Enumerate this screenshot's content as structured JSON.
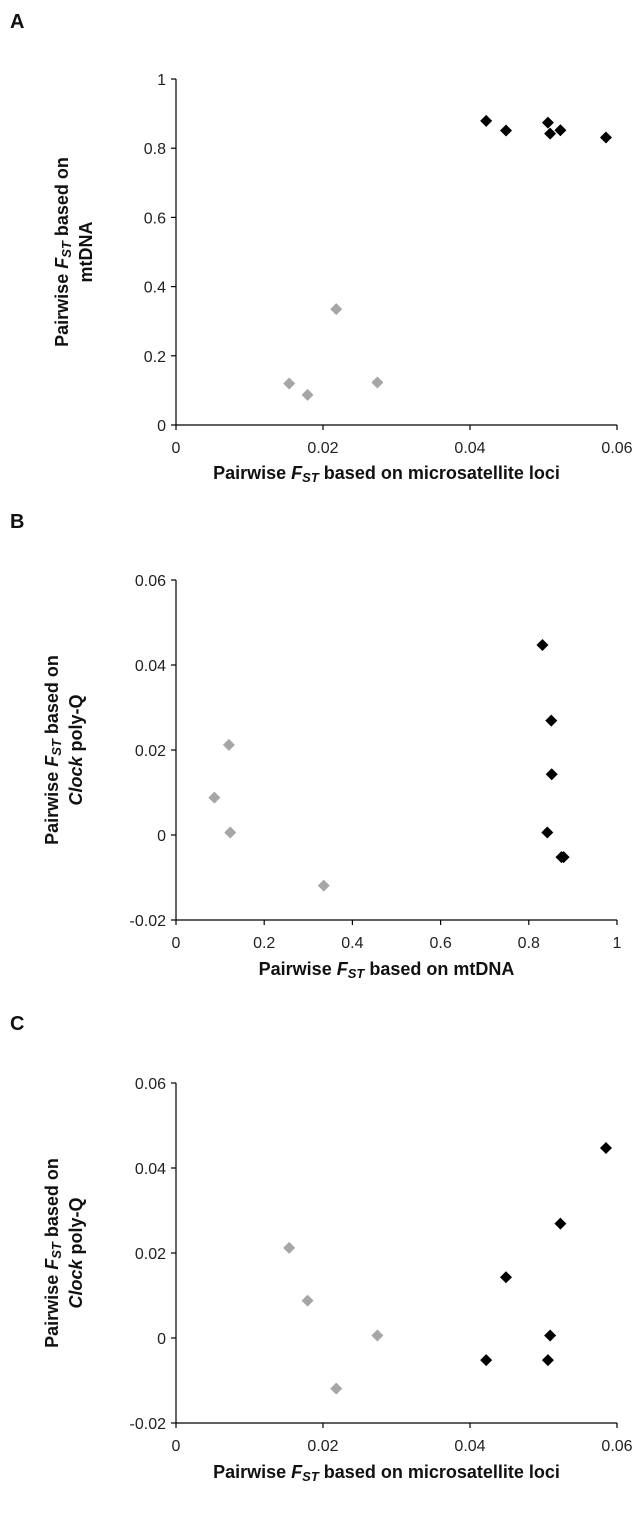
{
  "chart_data": [
    {
      "panel": "A",
      "type": "scatter",
      "xlabel": {
        "pre": "Pairwise ",
        "sub": "FST",
        "post": " based on microsatellite loci"
      },
      "ylabel": {
        "line1_pre": "Pairwise ",
        "line1_sub": "FST",
        "line1_post": " based on",
        "line2": "mtDNA"
      },
      "xlim": [
        0,
        0.06
      ],
      "ylim": [
        0,
        1
      ],
      "xticks": [
        "0",
        "0.02",
        "0.04",
        "0.06"
      ],
      "yticks": [
        "0",
        "0.2",
        "0.4",
        "0.6",
        "0.8",
        "1"
      ],
      "colors": {
        "gray": "#a6a6a6",
        "black": "#000000"
      },
      "series": [
        {
          "color": "gray",
          "points": [
            [
              0.0154,
              0.12
            ],
            [
              0.0179,
              0.087
            ],
            [
              0.0218,
              0.335
            ],
            [
              0.0274,
              0.123
            ]
          ]
        },
        {
          "color": "black",
          "points": [
            [
              0.0422,
              0.879
            ],
            [
              0.0449,
              0.851
            ],
            [
              0.0506,
              0.874
            ],
            [
              0.0509,
              0.842
            ],
            [
              0.0523,
              0.852
            ],
            [
              0.0585,
              0.831
            ]
          ]
        }
      ]
    },
    {
      "panel": "B",
      "type": "scatter",
      "xlabel": {
        "pre": "Pairwise ",
        "sub": "FST",
        "post": " based on mtDNA"
      },
      "ylabel": {
        "line1_pre": "Pairwise ",
        "line1_sub": "FST",
        "line1_post": " based on",
        "line2_italic": "Clock",
        "line2": " poly-Q"
      },
      "xlim": [
        0,
        1
      ],
      "ylim": [
        -0.02,
        0.06
      ],
      "xticks": [
        "0",
        "0.2",
        "0.4",
        "0.6",
        "0.8",
        "1"
      ],
      "yticks": [
        "-0.02",
        "0",
        "0.02",
        "0.04",
        "0.06"
      ],
      "colors": {
        "gray": "#a6a6a6",
        "black": "#000000"
      },
      "series": [
        {
          "color": "gray",
          "points": [
            [
              0.087,
              0.0088
            ],
            [
              0.12,
              0.0212
            ],
            [
              0.123,
              0.0006
            ],
            [
              0.335,
              -0.0119
            ]
          ]
        },
        {
          "color": "black",
          "points": [
            [
              0.831,
              0.0447
            ],
            [
              0.851,
              0.0269
            ],
            [
              0.852,
              0.0143
            ],
            [
              0.842,
              0.0006
            ],
            [
              0.874,
              -0.0052
            ],
            [
              0.879,
              -0.0052
            ]
          ]
        }
      ]
    },
    {
      "panel": "C",
      "type": "scatter",
      "xlabel": {
        "pre": "Pairwise ",
        "sub": "FST",
        "post": " based on microsatellite loci"
      },
      "ylabel": {
        "line1_pre": "Pairwise ",
        "line1_sub": "FST",
        "line1_post": " based on",
        "line2_italic": "Clock",
        "line2": " poly-Q"
      },
      "xlim": [
        0,
        0.06
      ],
      "ylim": [
        -0.02,
        0.06
      ],
      "xticks": [
        "0",
        "0.02",
        "0.04",
        "0.06"
      ],
      "yticks": [
        "-0.02",
        "0",
        "0.02",
        "0.04",
        "0.06"
      ],
      "colors": {
        "gray": "#a6a6a6",
        "black": "#000000"
      },
      "series": [
        {
          "color": "gray",
          "points": [
            [
              0.0154,
              0.0212
            ],
            [
              0.0179,
              0.0088
            ],
            [
              0.0218,
              -0.0119
            ],
            [
              0.0274,
              0.0006
            ]
          ]
        },
        {
          "color": "black",
          "points": [
            [
              0.0422,
              -0.0052
            ],
            [
              0.0449,
              0.0143
            ],
            [
              0.0506,
              -0.0052
            ],
            [
              0.0509,
              0.0006
            ],
            [
              0.0523,
              0.0269
            ],
            [
              0.0585,
              0.0447
            ]
          ]
        }
      ]
    }
  ]
}
